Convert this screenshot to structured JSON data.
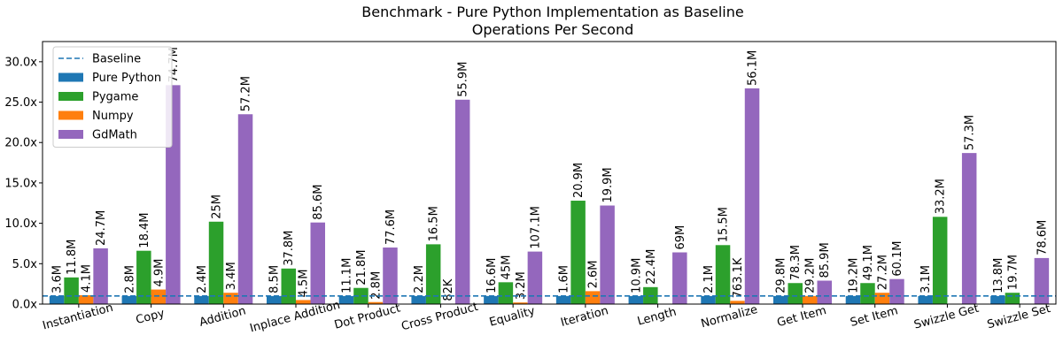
{
  "chart_data": {
    "type": "bar",
    "title": "Benchmark - Pure Python Implementation as Baseline",
    "subtitle": "Operations Per Second",
    "xlabel": "",
    "ylabel": "",
    "ylim": [
      0,
      32.5
    ],
    "yticks": [
      0,
      5,
      10,
      15,
      20,
      25,
      30
    ],
    "ytick_labels": [
      "0.0x",
      "5.0x",
      "10.0x",
      "15.0x",
      "20.0x",
      "25.0x",
      "30.0x"
    ],
    "grid": false,
    "legend_position": "top-left",
    "baseline": {
      "name": "Baseline",
      "value": 1.0,
      "color": "#1f77b4",
      "style": "dashed"
    },
    "categories": [
      "Instantiation",
      "Copy",
      "Addition",
      "Inplace Addition",
      "Dot Product",
      "Cross Product",
      "Equality",
      "Iteration",
      "Length",
      "Normalize",
      "Get Item",
      "Set Item",
      "Swizzle Get",
      "Swizzle Set"
    ],
    "series": [
      {
        "name": "Pure Python",
        "color": "#1f77b4",
        "values": [
          1,
          1,
          1,
          1,
          1,
          1,
          1,
          1,
          1,
          1,
          1,
          1,
          1,
          1
        ],
        "labels": [
          "3.6M",
          "2.8M",
          "2.4M",
          "8.5M",
          "11.1M",
          "2.2M",
          "16.6M",
          "1.6M",
          "10.9M",
          "2.1M",
          "29.8M",
          "19.2M",
          "3.1M",
          "13.8M"
        ]
      },
      {
        "name": "Pygame",
        "color": "#2ca02c",
        "values": [
          3.3,
          6.6,
          10.2,
          4.4,
          2.0,
          7.4,
          2.7,
          12.8,
          2.1,
          7.3,
          2.6,
          2.6,
          10.8,
          1.4
        ],
        "labels": [
          "11.8M",
          "18.4M",
          "25M",
          "37.8M",
          "21.8M",
          "16.5M",
          "45M",
          "20.9M",
          "22.4M",
          "15.5M",
          "78.3M",
          "49.1M",
          "33.2M",
          "19.7M"
        ]
      },
      {
        "name": "Numpy",
        "color": "#ff7f0e",
        "values": [
          1.1,
          1.8,
          1.4,
          0.5,
          0.25,
          0.04,
          0.2,
          1.6,
          null,
          0.4,
          1.0,
          1.4,
          null,
          null
        ],
        "labels": [
          "4.1M",
          "4.9M",
          "3.4M",
          "4.5M",
          "2.8M",
          "82K",
          "3.2M",
          "2.6M",
          null,
          "763.1K",
          "29.2M",
          "27.2M",
          null,
          null
        ]
      },
      {
        "name": "GdMath",
        "color": "#9467bd",
        "values": [
          6.9,
          27.1,
          23.5,
          10.1,
          7.0,
          25.3,
          6.5,
          12.2,
          6.4,
          26.7,
          2.9,
          3.1,
          18.7,
          5.7
        ],
        "labels": [
          "24.7M",
          "74.7M",
          "57.2M",
          "85.6M",
          "77.6M",
          "55.9M",
          "107.1M",
          "19.9M",
          "69M",
          "56.1M",
          "85.9M",
          "60.1M",
          "57.3M",
          "78.6M"
        ]
      }
    ]
  }
}
